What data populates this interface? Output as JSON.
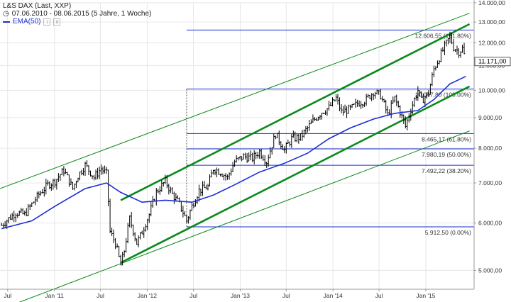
{
  "legend": {
    "instrument": "L&S DAX (Last, XXP)",
    "range": "07.06.2010 - 08.06.2015 (5 Jahre, 1 Woche)",
    "ema_label": "EMA(50)",
    "controls": [
      "↕",
      "x"
    ]
  },
  "colors": {
    "price": "#000000",
    "ema": "#1a2ed6",
    "channel": "#0a8a1a",
    "fib": "#1a2ed6",
    "grid": "#e6e6e6",
    "axis": "#999999"
  },
  "chart_data": {
    "type": "line",
    "title": "",
    "xlabel": "",
    "ylabel": "",
    "scale": "log",
    "ylim": [
      4650,
      14000
    ],
    "xlim": [
      "2010-06-01",
      "2015-07-10"
    ],
    "y_ticks": [
      "14.000,00",
      "13.000,00",
      "12.000,00",
      "11.000,00",
      "10.000,00",
      "9.000,00",
      "8.000,00",
      "7.000,00",
      "6.000,00",
      "5.000,00"
    ],
    "y_tick_values": [
      14000,
      13000,
      12000,
      11000,
      10000,
      9000,
      8000,
      7000,
      6000,
      5000
    ],
    "x_ticks": [
      "Jul",
      "Jan '11",
      "Jul",
      "Jan '12",
      "Jul",
      "Jan '13",
      "Jul",
      "Jan '14",
      "Jul",
      "Jan '15"
    ],
    "x_tick_dates": [
      "2010-07-01",
      "2011-01-01",
      "2011-07-01",
      "2012-01-01",
      "2012-07-01",
      "2013-01-01",
      "2013-07-01",
      "2014-01-01",
      "2014-07-01",
      "2015-01-01"
    ],
    "last_value": 11171,
    "last_label": "11.171,00",
    "series": [
      {
        "name": "L&S DAX (Last, XXP)",
        "kind": "ohlc",
        "points": [
          [
            "2010-06-07",
            5950
          ],
          [
            "2010-07-05",
            6100
          ],
          [
            "2010-08-02",
            6250
          ],
          [
            "2010-09-06",
            6200
          ],
          [
            "2010-10-04",
            6450
          ],
          [
            "2010-11-01",
            6700
          ],
          [
            "2010-12-06",
            6950
          ],
          [
            "2011-01-03",
            7050
          ],
          [
            "2011-02-07",
            7350
          ],
          [
            "2011-03-14",
            6850
          ],
          [
            "2011-04-04",
            7200
          ],
          [
            "2011-05-02",
            7500
          ],
          [
            "2011-06-06",
            7150
          ],
          [
            "2011-07-04",
            7400
          ],
          [
            "2011-07-25",
            7250
          ],
          [
            "2011-08-08",
            5800
          ],
          [
            "2011-08-29",
            5550
          ],
          [
            "2011-09-19",
            5100
          ],
          [
            "2011-10-03",
            5400
          ],
          [
            "2011-10-24",
            6100
          ],
          [
            "2011-11-21",
            5550
          ],
          [
            "2011-12-12",
            5800
          ],
          [
            "2012-01-09",
            6200
          ],
          [
            "2012-02-06",
            6750
          ],
          [
            "2012-03-12",
            7050
          ],
          [
            "2012-04-09",
            6700
          ],
          [
            "2012-05-07",
            6450
          ],
          [
            "2012-06-04",
            6050
          ],
          [
            "2012-06-25",
            6400
          ],
          [
            "2012-07-23",
            6800
          ],
          [
            "2012-08-27",
            6900
          ],
          [
            "2012-09-17",
            7400
          ],
          [
            "2012-10-15",
            7300
          ],
          [
            "2012-11-12",
            7150
          ],
          [
            "2012-12-10",
            7600
          ],
          [
            "2013-01-14",
            7750
          ],
          [
            "2013-02-18",
            7700
          ],
          [
            "2013-03-18",
            7900
          ],
          [
            "2013-04-15",
            7600
          ],
          [
            "2013-05-20",
            8450
          ],
          [
            "2013-06-24",
            7950
          ],
          [
            "2013-07-22",
            8300
          ],
          [
            "2013-08-26",
            8350
          ],
          [
            "2013-09-23",
            8650
          ],
          [
            "2013-10-21",
            8950
          ],
          [
            "2013-11-18",
            9200
          ],
          [
            "2013-12-16",
            9350
          ],
          [
            "2014-01-13",
            9700
          ],
          [
            "2014-02-03",
            9200
          ],
          [
            "2014-03-10",
            9300
          ],
          [
            "2014-04-07",
            9500
          ],
          [
            "2014-05-12",
            9650
          ],
          [
            "2014-06-09",
            9950
          ],
          [
            "2014-07-07",
            9800
          ],
          [
            "2014-08-04",
            9100
          ],
          [
            "2014-09-01",
            9700
          ],
          [
            "2014-10-13",
            8700
          ],
          [
            "2014-11-03",
            9300
          ],
          [
            "2014-12-01",
            10000
          ],
          [
            "2014-12-15",
            9600
          ],
          [
            "2015-01-12",
            9900
          ],
          [
            "2015-02-02",
            10850
          ],
          [
            "2015-03-02",
            11500
          ],
          [
            "2015-04-06",
            12300
          ],
          [
            "2015-04-20",
            11800
          ],
          [
            "2015-05-11",
            11600
          ],
          [
            "2015-05-25",
            11750
          ],
          [
            "2015-06-08",
            11171
          ]
        ]
      },
      {
        "name": "EMA(50)",
        "kind": "line",
        "points": [
          [
            "2010-06-07",
            5870
          ],
          [
            "2010-10-04",
            6050
          ],
          [
            "2011-01-03",
            6400
          ],
          [
            "2011-05-02",
            6850
          ],
          [
            "2011-07-25",
            7000
          ],
          [
            "2011-09-19",
            6750
          ],
          [
            "2011-12-12",
            6500
          ],
          [
            "2012-03-12",
            6550
          ],
          [
            "2012-06-25",
            6500
          ],
          [
            "2012-09-17",
            6680
          ],
          [
            "2012-12-10",
            6950
          ],
          [
            "2013-03-18",
            7300
          ],
          [
            "2013-06-24",
            7550
          ],
          [
            "2013-09-23",
            7850
          ],
          [
            "2013-12-16",
            8300
          ],
          [
            "2014-03-10",
            8650
          ],
          [
            "2014-06-09",
            8950
          ],
          [
            "2014-09-01",
            9150
          ],
          [
            "2014-12-01",
            9250
          ],
          [
            "2015-02-02",
            9650
          ],
          [
            "2015-04-06",
            10250
          ],
          [
            "2015-06-08",
            10550
          ]
        ]
      }
    ],
    "fibonacci": [
      {
        "label": "12.606,55 (161.80%)",
        "value": 12606.55
      },
      {
        "label": "10.047,80 (100.00%)",
        "value": 10047.8
      },
      {
        "label": "8.465,17 (61.80%)",
        "value": 8465.17
      },
      {
        "label": "7.980,19 (50.00%)",
        "value": 7980.19
      },
      {
        "label": "7.492,22 (38.20%)",
        "value": 7492.22
      },
      {
        "label": "5.912,50 (0.00%)",
        "value": 5912.5
      }
    ],
    "fib_start": "2012-06-04",
    "channel_lines": [
      {
        "kind": "thick",
        "from": [
          "2011-09-19",
          6550
        ],
        "to": [
          "2015-06-22",
          12900
        ]
      },
      {
        "kind": "thick",
        "from": [
          "2011-09-19",
          5150
        ],
        "to": [
          "2015-06-22",
          10150
        ]
      },
      {
        "kind": "thin",
        "from": [
          "2010-06-01",
          6850
        ],
        "to": [
          "2015-06-22",
          13450
        ]
      },
      {
        "kind": "thin",
        "from": [
          "2010-06-01",
          4300
        ],
        "to": [
          "2015-06-22",
          8550
        ]
      }
    ]
  }
}
